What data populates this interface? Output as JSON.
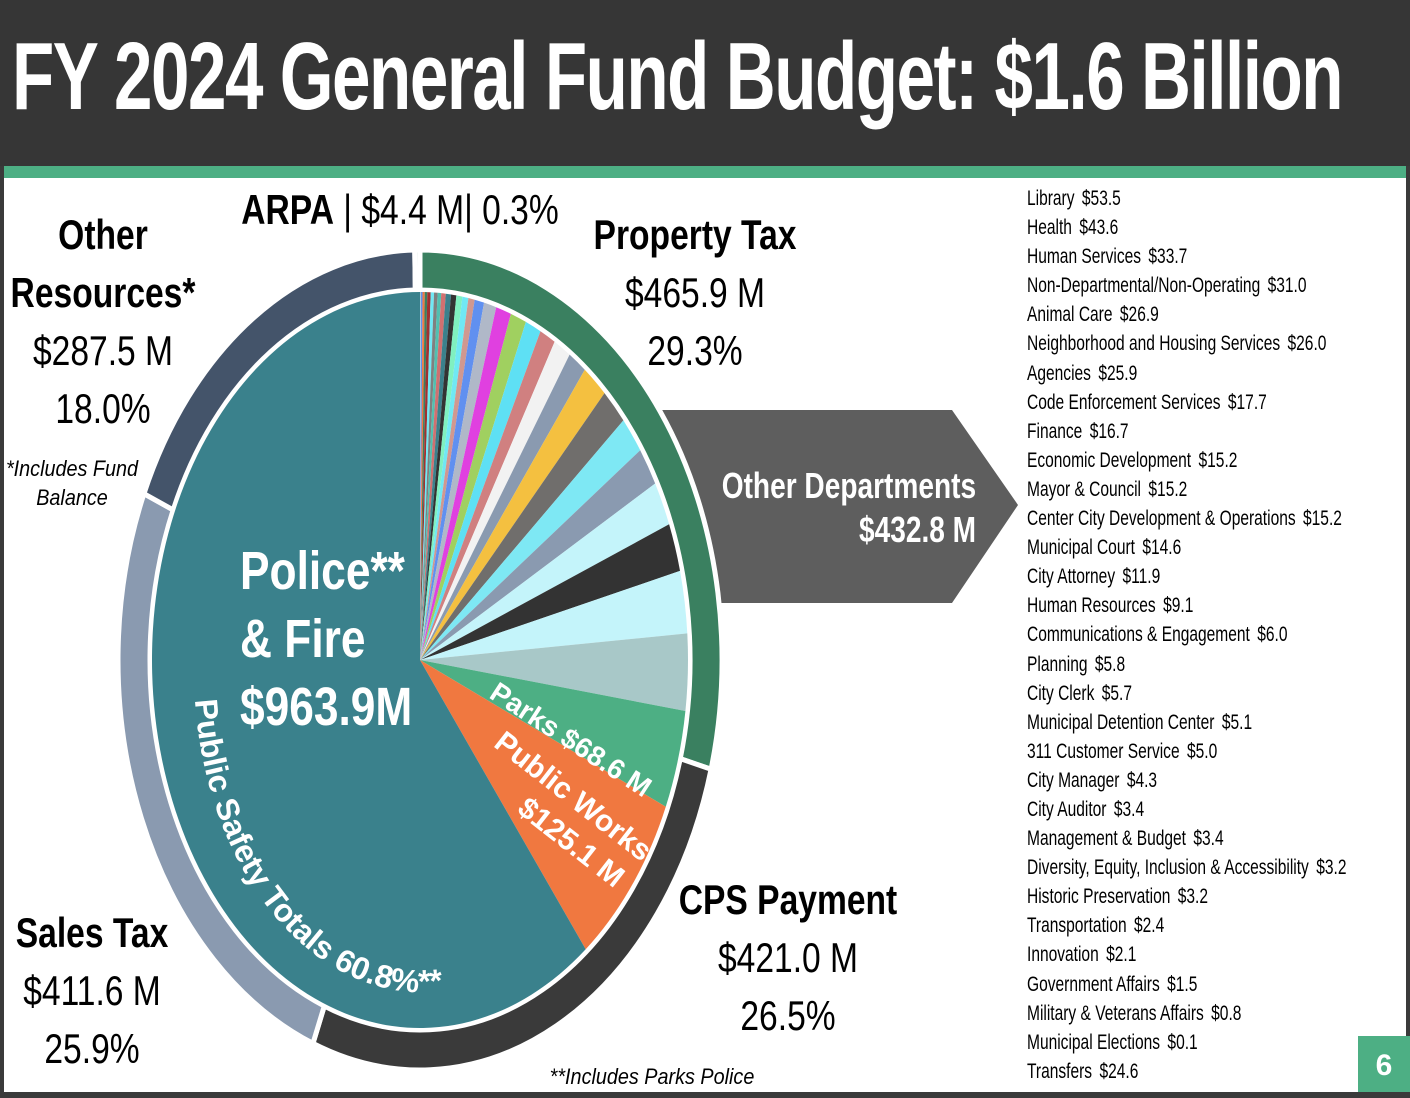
{
  "title": "FY 2024 General Fund Budget: $1.6 Billion",
  "page_number": "6",
  "labels": {
    "other_resources": [
      "Other",
      "Resources*",
      "$287.5 M",
      "18.0%"
    ],
    "other_resources_note": [
      "*Includes Fund",
      "Balance"
    ],
    "arpa": {
      "name": "ARPA",
      "rest": " | $4.4 M| 0.3%"
    },
    "property_tax": [
      "Property Tax",
      "$465.9 M",
      "29.3%"
    ],
    "cps_payment": [
      "CPS Payment",
      "$421.0 M",
      "26.5%"
    ],
    "sales_tax": [
      "Sales Tax",
      "$411.6 M",
      "25.9%"
    ],
    "other_departments": [
      "Other Departments",
      "$432.8 M"
    ],
    "police_fire": [
      "Police**",
      "& Fire",
      "$963.9M"
    ],
    "parks": "Parks $68.6 M",
    "public_works": [
      "Public Works",
      "$125.1 M"
    ],
    "public_safety": "Public Safety Totals 60.8%**",
    "parks_police_note": "**Includes Parks Police"
  },
  "chart_data": {
    "type": "pie",
    "title": "FY 2024 General Fund Budget: $1.6 Billion",
    "unit": "$M",
    "revenues_ring": [
      {
        "name": "Property Tax",
        "value": 465.9,
        "percent": 29.3,
        "color": "#3a8060"
      },
      {
        "name": "CPS Payment",
        "value": 421.0,
        "percent": 26.5,
        "color": "#3a3a3a"
      },
      {
        "name": "Sales Tax",
        "value": 411.6,
        "percent": 25.9,
        "color": "#8a9ab0"
      },
      {
        "name": "Other Resources",
        "value": 287.5,
        "percent": 18.0,
        "color": "#44546a"
      },
      {
        "name": "ARPA",
        "value": 4.4,
        "percent": 0.3,
        "color": "#c8dcd4"
      }
    ],
    "expenditures_pie": [
      {
        "name": "Police & Fire",
        "value": 963.9,
        "color": "#3a818c"
      },
      {
        "name": "Public Works",
        "value": 125.1,
        "color": "#f07840"
      },
      {
        "name": "Parks",
        "value": 68.6,
        "color": "#4daf84"
      },
      {
        "name": "Other Departments",
        "value": 432.8
      }
    ],
    "other_departments": [
      {
        "name": "Library",
        "value": 53.5,
        "color": "#a8c8c8"
      },
      {
        "name": "Health",
        "value": 43.6,
        "color": "#c4f4fa"
      },
      {
        "name": "Human Services",
        "value": 33.7,
        "color": "#333333"
      },
      {
        "name": "Non-Departmental/Non-Operating",
        "value": 31.0,
        "color": "#c4f4fa"
      },
      {
        "name": "Animal Care",
        "value": 26.9,
        "color": "#8a9ab0"
      },
      {
        "name": "Neighborhood and Housing Services",
        "value": 26.0,
        "color": "#7ee8f4"
      },
      {
        "name": "Agencies",
        "value": 25.9,
        "color": "#706e6c"
      },
      {
        "name": "Code Enforcement Services",
        "value": 17.7,
        "color": "#8a9ab0"
      },
      {
        "name": "Finance",
        "value": 16.7,
        "color": "#f2f2f2"
      },
      {
        "name": "Economic Development",
        "value": 15.2,
        "color": "#d08080"
      },
      {
        "name": "Mayor & Council",
        "value": 15.2,
        "color": "#5ee0f4"
      },
      {
        "name": "Center City Development & Operations",
        "value": 15.2,
        "color": "#a0d060"
      },
      {
        "name": "Municipal Court",
        "value": 14.6,
        "color": "#e040e0"
      },
      {
        "name": "City Attorney",
        "value": 11.9,
        "color": "#b0b8c8"
      },
      {
        "name": "Human Resources",
        "value": 9.1,
        "color": "#6090f0"
      },
      {
        "name": "Communications & Engagement",
        "value": 6.0,
        "color": "#d09890"
      },
      {
        "name": "Planning",
        "value": 5.8,
        "color": "#70e8f4"
      },
      {
        "name": "City Clerk",
        "value": 5.7,
        "color": "#80f0c0"
      },
      {
        "name": "Municipal Detention Center",
        "value": 5.1,
        "color": "#333333"
      },
      {
        "name": "311 Customer Service",
        "value": 5.0,
        "color": "#3a818c"
      },
      {
        "name": "City Manager",
        "value": 4.3,
        "color": "#d07070"
      },
      {
        "name": "City Auditor",
        "value": 3.4,
        "color": "#50c0b0"
      },
      {
        "name": "Management & Budget",
        "value": 3.4,
        "color": "#808080"
      },
      {
        "name": "Diversity, Equity, Inclusion & Accessibility",
        "value": 3.2,
        "color": "#70e8f4"
      },
      {
        "name": "Historic Preservation",
        "value": 3.2,
        "color": "#a03030"
      },
      {
        "name": "Transportation",
        "value": 2.4,
        "color": "#3a8060"
      },
      {
        "name": "Innovation",
        "value": 2.1,
        "color": "#f07840"
      },
      {
        "name": "Government Affairs",
        "value": 1.5,
        "color": "#6090f0"
      },
      {
        "name": "Military & Veterans Affairs",
        "value": 0.8,
        "color": "#a8c8c8"
      },
      {
        "name": "Municipal Elections",
        "value": 0.1,
        "color": "#333333"
      },
      {
        "name": "Transfers",
        "value": 24.6,
        "color": "#f4c040"
      }
    ]
  }
}
